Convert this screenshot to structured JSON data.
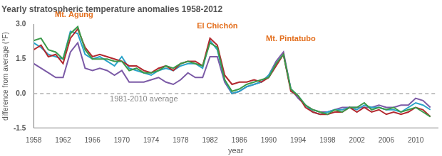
{
  "chart_data": {
    "type": "line",
    "title": "Yearly stratospheric temperature anomalies 1958-2012",
    "x_label": "year",
    "y_label": "difference from average (°F)",
    "x": [
      1958,
      1959,
      1960,
      1961,
      1962,
      1963,
      1964,
      1965,
      1966,
      1967,
      1968,
      1969,
      1970,
      1971,
      1972,
      1973,
      1974,
      1975,
      1976,
      1977,
      1978,
      1979,
      1980,
      1981,
      1982,
      1983,
      1984,
      1985,
      1986,
      1987,
      1988,
      1989,
      1990,
      1991,
      1992,
      1993,
      1994,
      1995,
      1996,
      1997,
      1998,
      1999,
      2000,
      2001,
      2002,
      2003,
      2004,
      2005,
      2006,
      2007,
      2008,
      2009,
      2010,
      2011,
      2012
    ],
    "series": [
      {
        "color": "#3a9a4a",
        "values": [
          2.3,
          2.4,
          1.9,
          1.8,
          1.5,
          2.6,
          2.9,
          1.9,
          1.5,
          1.5,
          1.5,
          1.4,
          1.4,
          1.0,
          1.1,
          0.9,
          0.9,
          1.0,
          1.2,
          1.1,
          1.3,
          1.4,
          1.3,
          1.2,
          2.2,
          2.0,
          0.6,
          0.1,
          0.2,
          0.4,
          0.5,
          0.6,
          0.7,
          1.3,
          1.7,
          0.2,
          -0.1,
          -0.5,
          -0.7,
          -0.8,
          -0.9,
          -0.7,
          -0.8,
          -0.6,
          -0.6,
          -0.4,
          -0.7,
          -0.6,
          -0.7,
          -0.6,
          -0.8,
          -0.7,
          -0.6,
          -0.8,
          -1.0
        ]
      },
      {
        "color": "#b2282e",
        "values": [
          1.9,
          2.1,
          1.6,
          1.7,
          1.3,
          2.4,
          2.8,
          2.0,
          1.6,
          1.7,
          1.6,
          1.5,
          1.4,
          1.2,
          1.2,
          1.0,
          0.9,
          1.1,
          1.2,
          1.0,
          1.3,
          1.4,
          1.4,
          1.2,
          2.4,
          2.1,
          0.8,
          0.4,
          0.5,
          0.5,
          0.6,
          0.5,
          0.7,
          1.2,
          1.7,
          0.1,
          -0.1,
          -0.6,
          -0.8,
          -0.9,
          -0.9,
          -0.8,
          -0.8,
          -0.6,
          -0.8,
          -0.6,
          -0.8,
          -0.7,
          -0.9,
          -0.8,
          -0.9,
          -0.8,
          -0.6,
          -0.7,
          -1.0
        ]
      },
      {
        "color": "#2aa3c9",
        "values": [
          2.2,
          2.0,
          1.7,
          1.6,
          1.5,
          2.7,
          2.6,
          1.7,
          1.5,
          1.6,
          1.4,
          1.2,
          1.6,
          1.1,
          1.0,
          0.9,
          0.8,
          1.0,
          1.1,
          1.0,
          1.2,
          1.3,
          1.3,
          1.1,
          2.3,
          1.9,
          0.6,
          0.0,
          0.1,
          0.3,
          0.4,
          0.5,
          0.8,
          1.3,
          1.7,
          0.2,
          -0.1,
          -0.5,
          -0.8,
          -0.9,
          -0.8,
          -0.7,
          -0.7,
          -0.6,
          -0.7,
          -0.5,
          -0.6,
          -0.6,
          -0.7,
          -0.7,
          -0.8,
          -0.6,
          -0.4,
          -0.5,
          -0.7
        ]
      },
      {
        "color": "#7b5aa6",
        "values": [
          1.3,
          1.1,
          0.9,
          0.7,
          0.7,
          1.8,
          2.2,
          1.1,
          1.0,
          1.1,
          1.0,
          0.8,
          1.0,
          0.5,
          0.5,
          0.5,
          0.6,
          0.7,
          0.5,
          0.4,
          0.6,
          0.9,
          0.7,
          0.7,
          1.6,
          1.6,
          0.5,
          0.0,
          0.1,
          0.3,
          0.4,
          0.5,
          0.8,
          1.4,
          1.8,
          0.2,
          -0.2,
          -0.5,
          -0.7,
          -0.8,
          -0.8,
          -0.7,
          -0.6,
          -0.6,
          -0.6,
          -0.6,
          -0.6,
          -0.5,
          -0.6,
          -0.6,
          -0.5,
          -0.5,
          -0.2,
          -0.3,
          -0.6
        ]
      }
    ],
    "xlim": [
      1958,
      2013
    ],
    "xticks": [
      1958,
      1962,
      1966,
      1970,
      1974,
      1978,
      1982,
      1986,
      1990,
      1994,
      1998,
      2002,
      2006,
      2010
    ],
    "ylim": [
      -1.5,
      3.0
    ],
    "yticks": [
      -1.5,
      {
        "value": 0,
        "label": "0.0"
      },
      1.5,
      {
        "value": 3,
        "label": "3.0"
      }
    ],
    "grid": false,
    "annotations": [
      {
        "text": "Mt. Agung",
        "x": 1963.5,
        "y": 3.25,
        "color": "#e36f1e"
      },
      {
        "text": "El Chichón",
        "x": 1983,
        "y": 2.75,
        "color": "#e36f1e"
      },
      {
        "text": "Mt. Pintatubo",
        "x": 1993,
        "y": 2.2,
        "color": "#e36f1e"
      }
    ],
    "reference_line": {
      "text": "1981-2010 average",
      "y": 0,
      "label_x": 1973,
      "label_y": -0.25,
      "color": "#888888",
      "line_style": "dashed"
    }
  }
}
